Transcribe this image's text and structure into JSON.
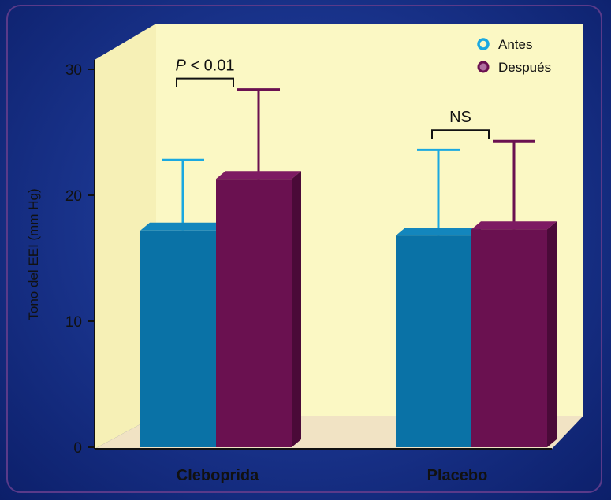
{
  "chart_data": {
    "type": "bar",
    "categories": [
      "Cleboprida",
      "Placebo"
    ],
    "series": [
      {
        "name": "Antes",
        "values": [
          17.2,
          16.8
        ],
        "errors": [
          5.6,
          6.8
        ],
        "color": "#0a72a6",
        "side": "#075880",
        "top": "#1386bd",
        "errorColor": "#1aa8e0"
      },
      {
        "name": "Después",
        "values": [
          21.3,
          17.3
        ],
        "errors": [
          7.1,
          7.0
        ],
        "color": "#6a1150",
        "side": "#4a0a38",
        "top": "#7d1b62",
        "errorColor": "#6a1150"
      }
    ],
    "ylabel": "Tono del EEI  (mm Hg)",
    "ylim": [
      0,
      30
    ],
    "yticks": [
      "0",
      "10",
      "20",
      "30"
    ],
    "legend_position": "top-right",
    "annotations": [
      {
        "category": "Cleboprida",
        "text": "P < 0.01",
        "italic_part": "P",
        "rest": " < 0.01"
      },
      {
        "category": "Placebo",
        "text": "NS"
      }
    ],
    "colors": {
      "wall": "#fbf8c4",
      "floor": "#f1e3c4",
      "wall_side": "#f4efb8"
    }
  }
}
